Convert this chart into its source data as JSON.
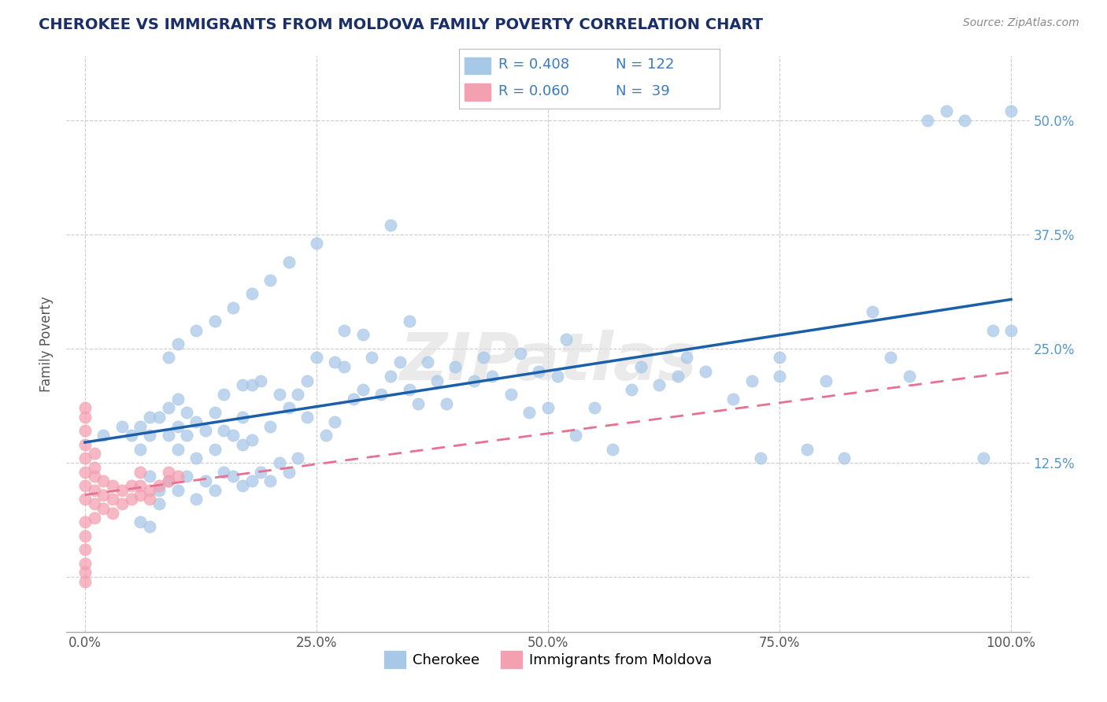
{
  "title": "CHEROKEE VS IMMIGRANTS FROM MOLDOVA FAMILY POVERTY CORRELATION CHART",
  "source": "Source: ZipAtlas.com",
  "ylabel": "Family Poverty",
  "watermark": "ZIPatlas",
  "xlim": [
    -0.02,
    1.02
  ],
  "ylim": [
    -0.06,
    0.57
  ],
  "xticks": [
    0.0,
    0.25,
    0.5,
    0.75,
    1.0
  ],
  "xticklabels": [
    "0.0%",
    "25.0%",
    "50.0%",
    "75.0%",
    "100.0%"
  ],
  "yticks": [
    0.0,
    0.125,
    0.25,
    0.375,
    0.5
  ],
  "yticklabels": [
    "",
    "12.5%",
    "25.0%",
    "37.5%",
    "50.0%"
  ],
  "cherokee_R": 0.408,
  "cherokee_N": 122,
  "moldova_R": 0.06,
  "moldova_N": 39,
  "cherokee_color": "#a8c8e8",
  "moldova_color": "#f4a0b0",
  "cherokee_line_color": "#1a5fa8",
  "moldova_line_color": "#e87090",
  "legend_text_color": "#3a7abf",
  "title_color": "#1a2e6a",
  "background_color": "#ffffff",
  "grid_color": "#cccccc",
  "right_axis_color": "#5599cc",
  "cherokee_x": [
    0.02,
    0.04,
    0.05,
    0.06,
    0.06,
    0.07,
    0.07,
    0.07,
    0.08,
    0.08,
    0.09,
    0.09,
    0.09,
    0.1,
    0.1,
    0.1,
    0.1,
    0.11,
    0.11,
    0.11,
    0.12,
    0.12,
    0.12,
    0.13,
    0.13,
    0.14,
    0.14,
    0.14,
    0.15,
    0.15,
    0.15,
    0.16,
    0.16,
    0.17,
    0.17,
    0.17,
    0.17,
    0.18,
    0.18,
    0.18,
    0.19,
    0.19,
    0.2,
    0.2,
    0.21,
    0.21,
    0.22,
    0.22,
    0.23,
    0.23,
    0.24,
    0.24,
    0.25,
    0.26,
    0.27,
    0.27,
    0.28,
    0.28,
    0.29,
    0.3,
    0.3,
    0.31,
    0.32,
    0.33,
    0.34,
    0.35,
    0.35,
    0.36,
    0.37,
    0.38,
    0.39,
    0.4,
    0.42,
    0.43,
    0.44,
    0.46,
    0.47,
    0.48,
    0.49,
    0.5,
    0.51,
    0.52,
    0.53,
    0.55,
    0.57,
    0.59,
    0.6,
    0.62,
    0.64,
    0.65,
    0.67,
    0.7,
    0.72,
    0.73,
    0.75,
    0.75,
    0.78,
    0.8,
    0.82,
    0.85,
    0.87,
    0.89,
    0.91,
    0.93,
    0.95,
    0.97,
    0.98,
    1.0,
    1.0,
    0.33,
    0.25,
    0.22,
    0.2,
    0.18,
    0.16,
    0.14,
    0.12,
    0.1,
    0.09,
    0.08,
    0.07,
    0.06
  ],
  "cherokee_y": [
    0.155,
    0.165,
    0.155,
    0.14,
    0.165,
    0.11,
    0.155,
    0.175,
    0.095,
    0.175,
    0.105,
    0.155,
    0.185,
    0.095,
    0.14,
    0.165,
    0.195,
    0.11,
    0.155,
    0.18,
    0.085,
    0.13,
    0.17,
    0.105,
    0.16,
    0.095,
    0.14,
    0.18,
    0.115,
    0.16,
    0.2,
    0.11,
    0.155,
    0.1,
    0.145,
    0.175,
    0.21,
    0.105,
    0.15,
    0.21,
    0.115,
    0.215,
    0.105,
    0.165,
    0.125,
    0.2,
    0.115,
    0.185,
    0.13,
    0.2,
    0.175,
    0.215,
    0.24,
    0.155,
    0.235,
    0.17,
    0.23,
    0.27,
    0.195,
    0.205,
    0.265,
    0.24,
    0.2,
    0.22,
    0.235,
    0.205,
    0.28,
    0.19,
    0.235,
    0.215,
    0.19,
    0.23,
    0.215,
    0.24,
    0.22,
    0.2,
    0.245,
    0.18,
    0.225,
    0.185,
    0.22,
    0.26,
    0.155,
    0.185,
    0.14,
    0.205,
    0.23,
    0.21,
    0.22,
    0.24,
    0.225,
    0.195,
    0.215,
    0.13,
    0.24,
    0.22,
    0.14,
    0.215,
    0.13,
    0.29,
    0.24,
    0.22,
    0.5,
    0.51,
    0.5,
    0.13,
    0.27,
    0.27,
    0.51,
    0.385,
    0.365,
    0.345,
    0.325,
    0.31,
    0.295,
    0.28,
    0.27,
    0.255,
    0.24,
    0.08,
    0.055,
    0.06
  ],
  "moldova_x": [
    0.0,
    0.0,
    0.0,
    0.0,
    0.0,
    0.0,
    0.0,
    0.0,
    0.0,
    0.0,
    0.0,
    0.0,
    0.0,
    0.0,
    0.01,
    0.01,
    0.01,
    0.01,
    0.01,
    0.01,
    0.02,
    0.02,
    0.02,
    0.03,
    0.03,
    0.03,
    0.04,
    0.04,
    0.05,
    0.05,
    0.06,
    0.06,
    0.06,
    0.07,
    0.07,
    0.08,
    0.09,
    0.09,
    0.1
  ],
  "moldova_y": [
    0.185,
    0.175,
    0.16,
    0.145,
    0.13,
    0.115,
    0.1,
    0.085,
    0.06,
    0.045,
    0.03,
    0.015,
    0.005,
    -0.005,
    0.065,
    0.08,
    0.095,
    0.11,
    0.12,
    0.135,
    0.075,
    0.09,
    0.105,
    0.07,
    0.085,
    0.1,
    0.08,
    0.095,
    0.085,
    0.1,
    0.09,
    0.1,
    0.115,
    0.085,
    0.095,
    0.1,
    0.105,
    0.115,
    0.11
  ]
}
